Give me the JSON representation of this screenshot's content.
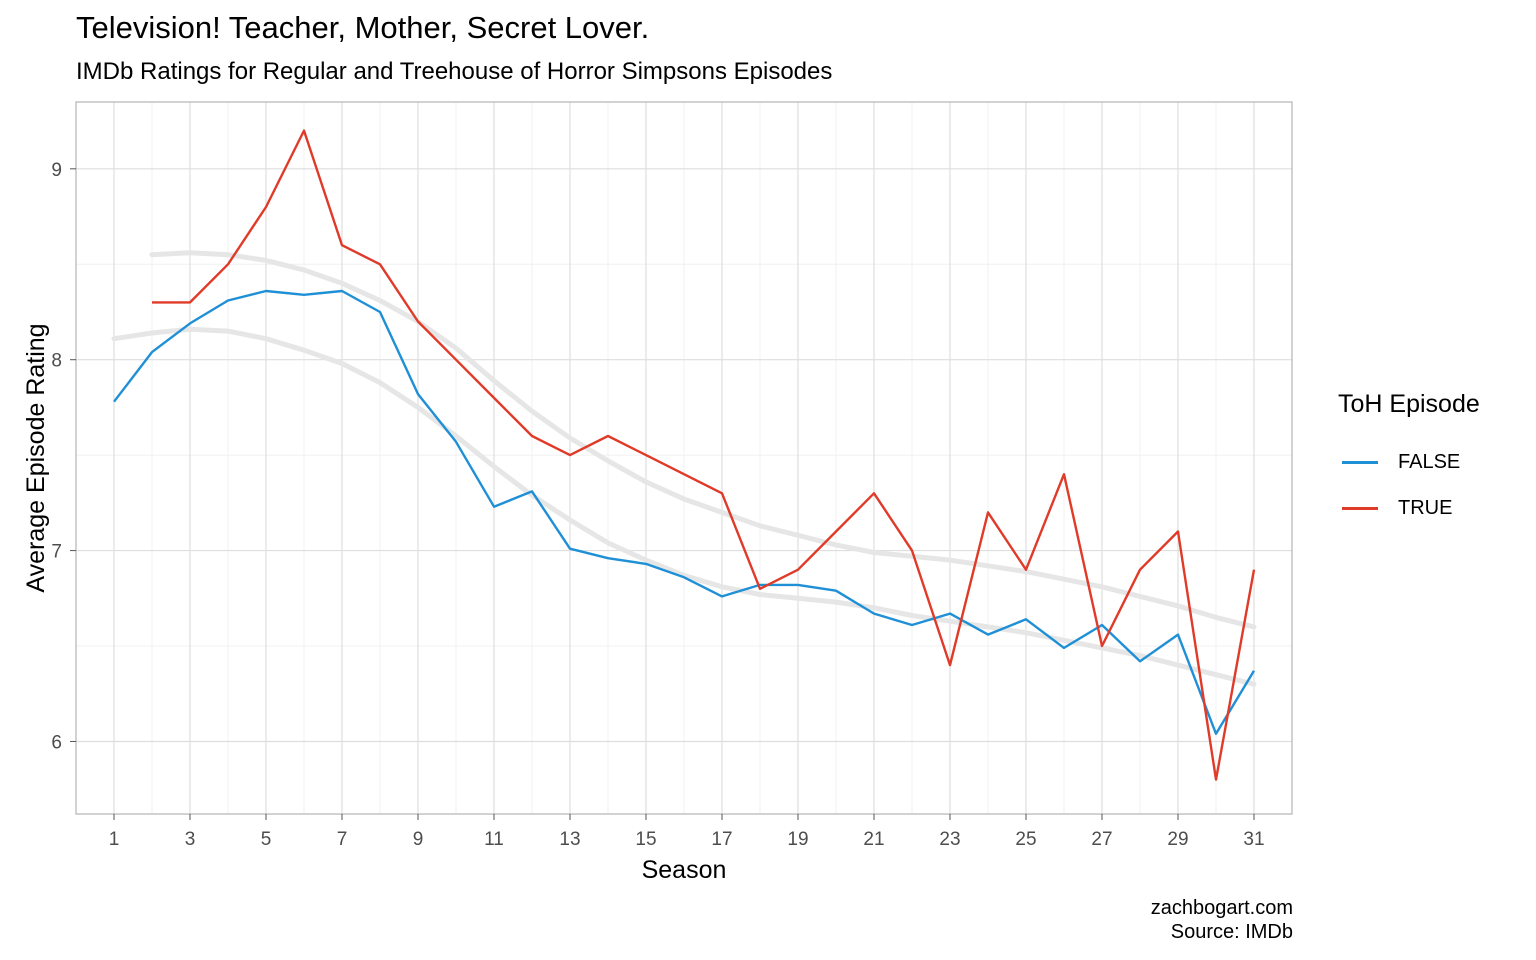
{
  "header": {
    "title": "Television! Teacher, Mother, Secret Lover.",
    "subtitle": "IMDb Ratings for Regular and Treehouse of Horror Simpsons Episodes"
  },
  "caption": {
    "line1": "zachbogart.com",
    "line2": "Source: IMDb"
  },
  "legend": {
    "title": "ToH Episode",
    "items": [
      {
        "label": "FALSE",
        "color": "#1f8fd6"
      },
      {
        "label": "TRUE",
        "color": "#e03a28"
      }
    ]
  },
  "chart_data": {
    "type": "line",
    "xlabel": "Season",
    "ylabel": "Average Episode Rating",
    "xlim": [
      0,
      32
    ],
    "ylim": [
      5.62,
      9.35
    ],
    "x_ticks": [
      1,
      3,
      5,
      7,
      9,
      11,
      13,
      15,
      17,
      19,
      21,
      23,
      25,
      27,
      29,
      31
    ],
    "y_ticks": [
      6,
      7,
      8,
      9
    ],
    "grid": true,
    "legend_position": "right",
    "series": [
      {
        "name": "FALSE",
        "color": "#1f8fd6",
        "x": [
          1,
          2,
          3,
          4,
          5,
          6,
          7,
          8,
          9,
          10,
          11,
          12,
          13,
          14,
          15,
          16,
          17,
          18,
          19,
          20,
          21,
          22,
          23,
          24,
          25,
          26,
          27,
          28,
          29,
          30,
          31
        ],
        "y": [
          7.78,
          8.04,
          8.19,
          8.31,
          8.36,
          8.34,
          8.36,
          8.25,
          7.82,
          7.57,
          7.23,
          7.31,
          7.01,
          6.96,
          6.93,
          6.86,
          6.76,
          6.82,
          6.82,
          6.79,
          6.67,
          6.61,
          6.67,
          6.56,
          6.64,
          6.49,
          6.61,
          6.42,
          6.56,
          6.04,
          6.37
        ]
      },
      {
        "name": "TRUE",
        "color": "#e03a28",
        "x": [
          2,
          3,
          4,
          5,
          6,
          7,
          8,
          9,
          10,
          11,
          12,
          13,
          14,
          15,
          16,
          17,
          18,
          19,
          20,
          21,
          22,
          23,
          24,
          25,
          26,
          27,
          28,
          29,
          30,
          31
        ],
        "y": [
          8.3,
          8.3,
          8.5,
          8.8,
          9.2,
          8.6,
          8.5,
          8.2,
          8.0,
          7.8,
          7.6,
          7.5,
          7.6,
          7.5,
          7.4,
          7.3,
          6.8,
          6.9,
          7.1,
          7.3,
          7.0,
          6.4,
          7.2,
          6.9,
          7.4,
          6.5,
          6.9,
          7.1,
          5.8,
          6.9
        ]
      }
    ],
    "smooth_trends": [
      {
        "color": "#e6e6e6",
        "x": [
          1,
          2,
          3,
          4,
          5,
          6,
          7,
          8,
          9,
          10,
          11,
          12,
          13,
          14,
          15,
          16,
          17,
          18,
          19,
          20,
          21,
          22,
          23,
          24,
          25,
          26,
          27,
          28,
          29,
          30,
          31
        ],
        "y": [
          8.11,
          8.14,
          8.16,
          8.15,
          8.11,
          8.05,
          7.98,
          7.88,
          7.75,
          7.6,
          7.44,
          7.29,
          7.16,
          7.04,
          6.95,
          6.87,
          6.81,
          6.77,
          6.75,
          6.73,
          6.7,
          6.66,
          6.63,
          6.6,
          6.57,
          6.53,
          6.49,
          6.45,
          6.4,
          6.35,
          6.3
        ]
      },
      {
        "color": "#e6e6e6",
        "x": [
          2,
          3,
          4,
          5,
          6,
          7,
          8,
          9,
          10,
          11,
          12,
          13,
          14,
          15,
          16,
          17,
          18,
          19,
          20,
          21,
          22,
          23,
          24,
          25,
          26,
          27,
          28,
          29,
          30,
          31
        ],
        "y": [
          8.55,
          8.56,
          8.55,
          8.52,
          8.47,
          8.4,
          8.31,
          8.2,
          8.06,
          7.89,
          7.73,
          7.59,
          7.47,
          7.36,
          7.27,
          7.2,
          7.13,
          7.08,
          7.03,
          6.99,
          6.97,
          6.95,
          6.92,
          6.89,
          6.85,
          6.81,
          6.76,
          6.71,
          6.65,
          6.6
        ]
      }
    ]
  }
}
